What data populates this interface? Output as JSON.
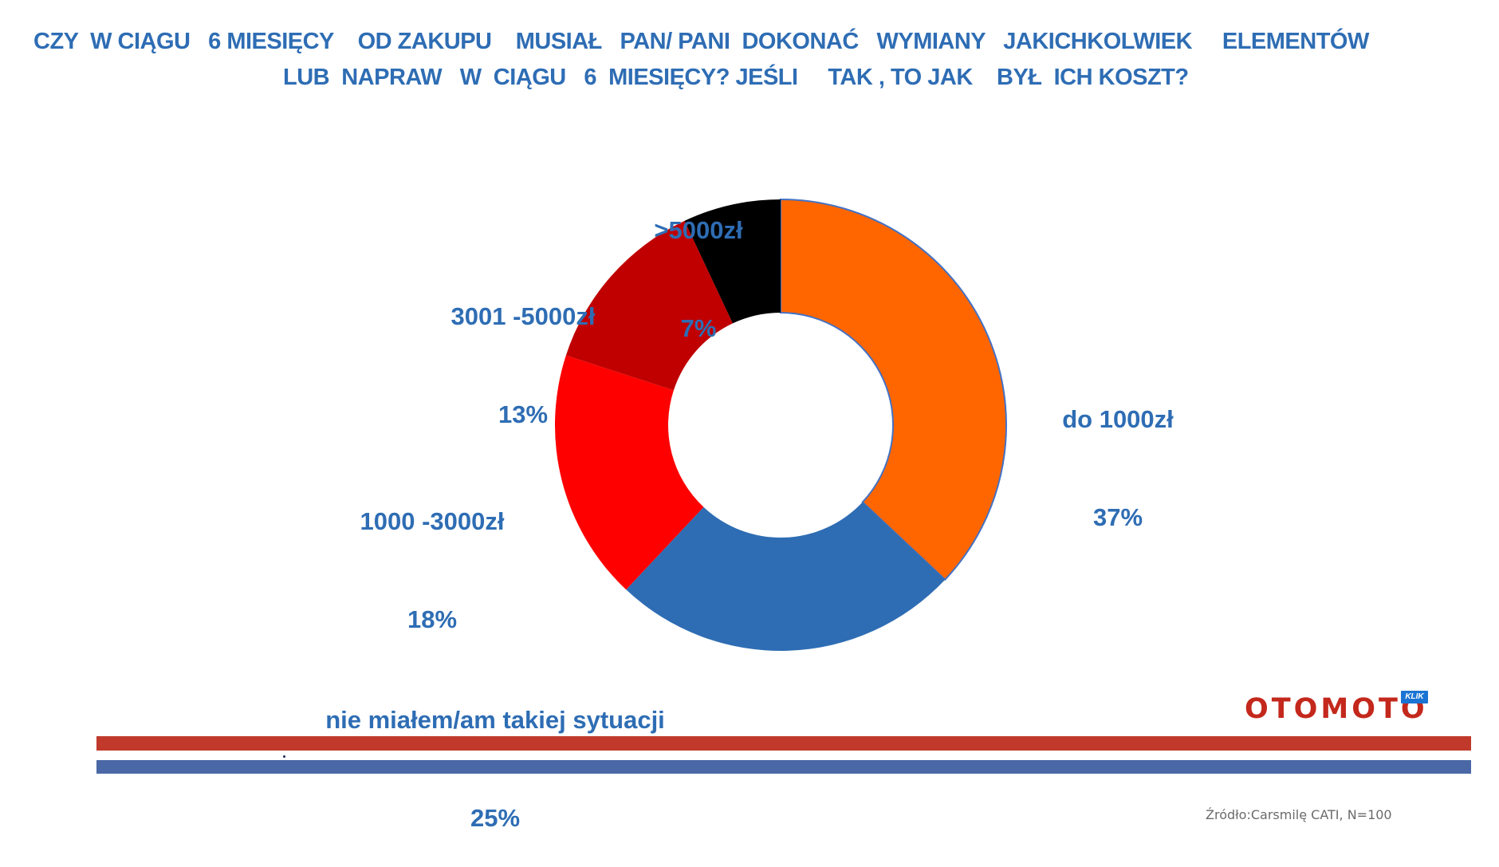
{
  "title": {
    "line1": "CZY  W CIĄGU   6 MIESIĘCY    OD ZAKUPU    MUSIAŁ   PAN/ PANI  DOKONAĆ   WYMIANY   JAKICHKOLWIEK     ELEMENTÓW",
    "line2": "LUB  NAPRAW   W  CIĄGU   6  MIESIĘCY? JEŚLI     TAK , TO JAK    BYŁ  ICH KOSZT?"
  },
  "labels": [
    {
      "name": "do 1000zł",
      "pct": "37%"
    },
    {
      "name": "nie miałem/am takiej sytuacji",
      "pct": "25%"
    },
    {
      "name": "1000 -3000zł",
      "pct": "18%"
    },
    {
      "name": "3001 -5000zł",
      "pct": "13%"
    },
    {
      "name": ">5000zł",
      "pct": "7%"
    }
  ],
  "logo": {
    "text": "OTOMOTO",
    "badge": "KLIK"
  },
  "source": "Źródło:Carsmilę CATI, N=100",
  "colors": {
    "title": "#2e6db4",
    "do_1000": "#ff6600",
    "none": "#2e6db4",
    "1000_3000": "#ff0000",
    "3001_5000": "#c00000",
    "over_5000": "#000000",
    "bar_red": "#c0392b",
    "bar_blue": "#4a68a6"
  },
  "chart_data": {
    "type": "pie",
    "subtype": "donut",
    "title": "CZY W CIĄGU 6 MIESIĘCY OD ZAKUPU MUSIAŁ PAN/ PANI DOKONAĆ WYMIANY JAKICHKOLWIEK ELEMENTÓW LUB NAPRAW W CIĄGU 6 MIESIĘCY? JEŚLI TAK, TO JAK BYŁ ICH KOSZT?",
    "categories": [
      "do 1000zł",
      "nie miałem/am takiej sytuacji",
      "1000-3000zł",
      "3001-5000zł",
      ">5000zł"
    ],
    "values": [
      37,
      25,
      18,
      13,
      7
    ],
    "unit": "%",
    "colors": [
      "#ff6600",
      "#2e6db4",
      "#ff0000",
      "#c00000",
      "#000000"
    ],
    "start_angle": "12 o'clock, clockwise",
    "legend": "none (data labels outside slices)",
    "source": "Źródło:Carsmilę CATI, N=100"
  }
}
